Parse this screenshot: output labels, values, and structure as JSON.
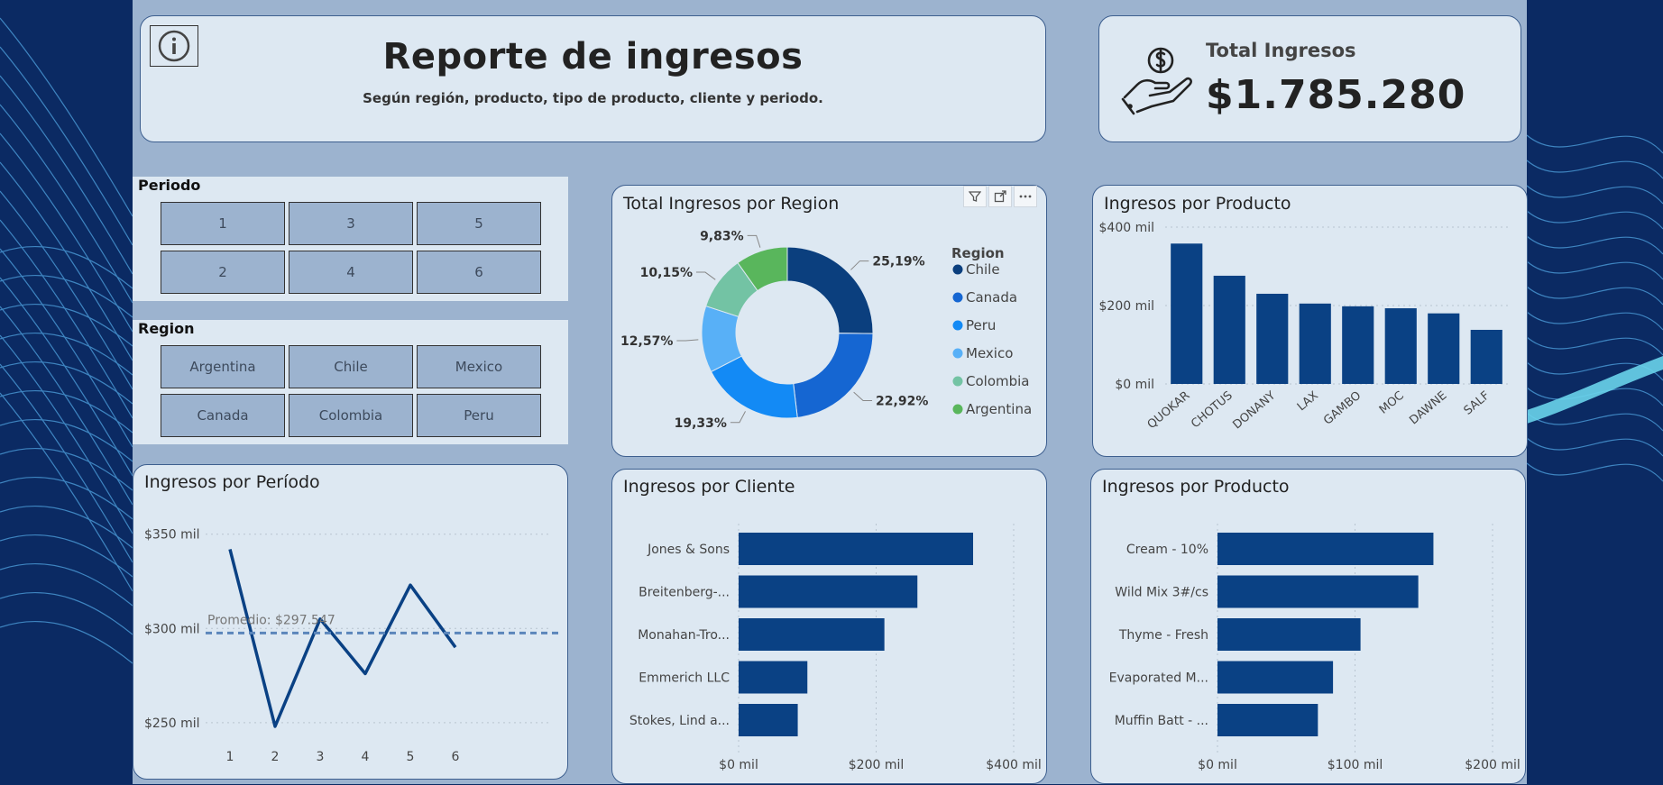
{
  "header": {
    "title": "Reporte de ingresos",
    "subtitle": "Según región, producto, tipo de producto, cliente y periodo."
  },
  "kpi": {
    "label": "Total Ingresos",
    "value": "$1.785.280"
  },
  "slicers": {
    "periodo": {
      "title": "Periodo",
      "items": [
        "1",
        "3",
        "5",
        "2",
        "4",
        "6"
      ]
    },
    "region": {
      "title": "Region",
      "items": [
        "Argentina",
        "Chile",
        "Mexico",
        "Canada",
        "Colombia",
        "Peru"
      ]
    }
  },
  "colors": {
    "bar": "#0a4184",
    "line": "#0a4184",
    "card": "#dde8f2",
    "canvas": "#9cb3cf",
    "chile": "#0b3f7e",
    "canada": "#1566d2",
    "peru": "#138af5",
    "mexico": "#58b0f7",
    "colombia": "#73c3a4",
    "argentina": "#59b65c"
  },
  "charts": {
    "donut": {
      "title": "Total Ingresos por Region",
      "legend_title": "Region",
      "header_icons": [
        "filter-icon",
        "focus-mode-icon",
        "more-options-icon"
      ]
    },
    "product_column": {
      "title": "Ingresos por Producto"
    },
    "period_line": {
      "title": "Ingresos por Período"
    },
    "client_bar": {
      "title": "Ingresos por Cliente"
    },
    "product_bar": {
      "title": "Ingresos por Producto"
    }
  },
  "chart_data": [
    {
      "id": "donut",
      "type": "pie",
      "title": "Total Ingresos por Region",
      "legend_title": "Region",
      "legend_position": "right",
      "categories": [
        "Chile",
        "Canada",
        "Peru",
        "Mexico",
        "Colombia",
        "Argentina"
      ],
      "values": [
        25.19,
        22.92,
        19.33,
        12.57,
        10.15,
        9.83
      ],
      "labels": [
        "25,19%",
        "22,92%",
        "19,33%",
        "12,57%",
        "10,15%",
        "9,83%"
      ]
    },
    {
      "id": "product_column",
      "type": "bar",
      "title": "Ingresos por Producto",
      "categories": [
        "QUOKAR",
        "CHOTUS",
        "DONANY",
        "LAX",
        "GAMBO",
        "MOC",
        "DAWNE",
        "SALF"
      ],
      "values": [
        358,
        276,
        230,
        205,
        198,
        193,
        180,
        138
      ],
      "ylim": [
        0,
        400
      ],
      "yticks": [
        0,
        200,
        400
      ],
      "ytick_labels": [
        "$0 mil",
        "$200 mil",
        "$400 mil"
      ],
      "grid": true
    },
    {
      "id": "period_line",
      "type": "line",
      "title": "Ingresos por Período",
      "x": [
        1,
        2,
        3,
        4,
        5,
        6
      ],
      "x_labels": [
        "1",
        "2",
        "3",
        "4",
        "5",
        "6"
      ],
      "values": [
        342,
        248,
        305,
        276,
        323,
        290
      ],
      "ylim": [
        248,
        358
      ],
      "yticks": [
        250,
        300,
        350
      ],
      "ytick_labels": [
        "$250 mil",
        "$300 mil",
        "$350 mil"
      ],
      "average": 297.547,
      "average_label": "Promedio: $297.547",
      "grid": true
    },
    {
      "id": "client_bar",
      "type": "bar",
      "orientation": "horizontal",
      "title": "Ingresos por Cliente",
      "categories": [
        "Jones & Sons",
        "Breitenberg-...",
        "Monahan-Tro...",
        "Emmerich LLC",
        "Stokes, Lind a..."
      ],
      "values": [
        341,
        260,
        212,
        100,
        86
      ],
      "xlim": [
        0,
        400
      ],
      "xticks": [
        0,
        200,
        400
      ],
      "xtick_labels": [
        "$0 mil",
        "$200 mil",
        "$400 mil"
      ],
      "grid": true
    },
    {
      "id": "product_bar",
      "type": "bar",
      "orientation": "horizontal",
      "title": "Ingresos por Producto",
      "categories": [
        "Cream - 10%",
        "Wild Mix 3#/cs",
        "Thyme - Fresh",
        "Evaporated M...",
        "Muffin Batt - ..."
      ],
      "values": [
        157,
        146,
        104,
        84,
        73
      ],
      "xlim": [
        0,
        200
      ],
      "xticks": [
        0,
        100,
        200
      ],
      "xtick_labels": [
        "$0 mil",
        "$100 mil",
        "$200 mil"
      ],
      "grid": true
    }
  ]
}
